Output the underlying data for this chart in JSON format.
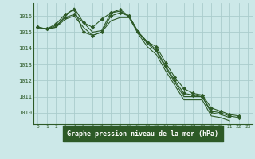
{
  "title": "Graphe pression niveau de la mer (hPa)",
  "background_color": "#cce8e8",
  "grid_color": "#aacccc",
  "line_color": "#2d5a27",
  "label_bg_color": "#2d5a27",
  "label_text_color": "#ffffff",
  "x_ticks": [
    0,
    1,
    2,
    3,
    4,
    5,
    6,
    7,
    8,
    9,
    10,
    11,
    12,
    13,
    14,
    15,
    16,
    17,
    18,
    19,
    20,
    21,
    22,
    23
  ],
  "ylim": [
    1009.3,
    1016.8
  ],
  "yticks": [
    1010,
    1011,
    1012,
    1013,
    1014,
    1015,
    1016
  ],
  "series": [
    {
      "y": [
        1015.3,
        1015.2,
        1015.4,
        1015.9,
        1016.1,
        1015.6,
        1015.3,
        1015.8,
        1016.2,
        1016.4,
        1016.0,
        1015.0,
        1014.4,
        1014.1,
        1013.1,
        1012.2,
        1011.5,
        1011.2,
        1011.1,
        1010.3,
        1010.1,
        1009.9,
        1009.8,
        null
      ],
      "marker": true,
      "marker_style": "D"
    },
    {
      "y": [
        1015.3,
        1015.2,
        1015.3,
        1016.0,
        1016.5,
        1015.6,
        1015.0,
        1015.1,
        1016.2,
        1016.3,
        1016.0,
        1015.0,
        1014.3,
        1013.8,
        1012.8,
        1011.9,
        1011.0,
        1011.0,
        1011.0,
        1010.0,
        1009.9,
        1009.7,
        null,
        null
      ],
      "marker": false,
      "marker_style": null
    },
    {
      "y": [
        1015.2,
        1015.2,
        1015.3,
        1015.8,
        1016.0,
        1015.3,
        1014.8,
        1015.0,
        1015.7,
        1015.9,
        1015.9,
        1014.9,
        1014.1,
        1013.6,
        1012.6,
        1011.7,
        1010.8,
        1010.8,
        1010.8,
        1009.8,
        1009.7,
        1009.5,
        null,
        null
      ],
      "marker": false,
      "marker_style": null
    },
    {
      "y": [
        1015.3,
        1015.2,
        1015.5,
        1016.1,
        1016.4,
        1015.0,
        1014.8,
        1015.0,
        1016.0,
        1016.2,
        1016.0,
        1015.0,
        1014.4,
        1013.9,
        1012.9,
        1012.0,
        1011.2,
        1011.1,
        1011.0,
        1010.1,
        1010.0,
        1009.8,
        1009.7,
        null
      ],
      "marker": true,
      "marker_style": "D"
    }
  ]
}
